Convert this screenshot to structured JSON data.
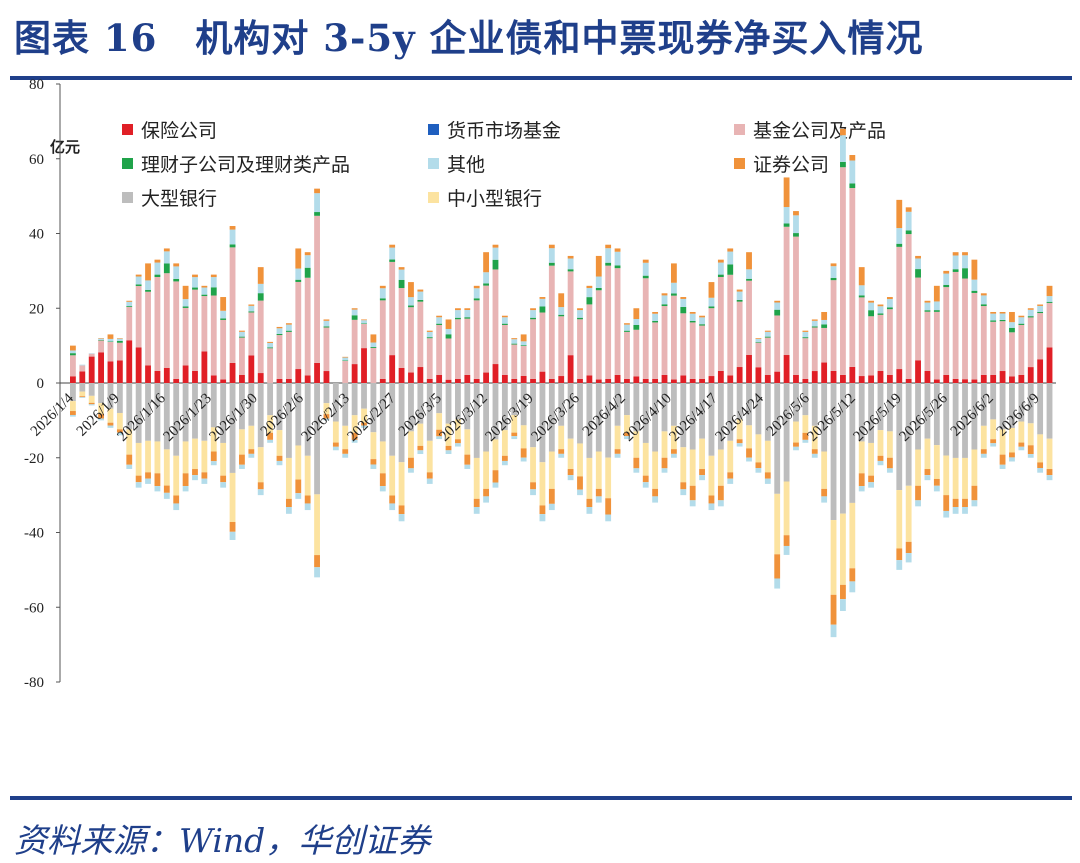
{
  "header": {
    "title": "图表 16　机构对 3-5y 企业债和中票现券净买入情况"
  },
  "footer": {
    "source": "资料来源：Wind，华创证券"
  },
  "chart_data": {
    "type": "bar",
    "stacked": true,
    "unit_label": "亿元",
    "ylim": [
      -80,
      80
    ],
    "yticks": [
      80,
      60,
      40,
      20,
      0,
      -20,
      -40,
      -60,
      -80
    ],
    "x_tick_labels": [
      "2026/1/4",
      "2026/1/9",
      "2026/1/16",
      "2026/1/23",
      "2026/1/30",
      "2026/2/6",
      "2026/2/13",
      "2026/2/27",
      "2026/3/5",
      "2026/3/12",
      "2026/3/19",
      "2026/3/26",
      "2026/4/2",
      "2026/4/10",
      "2026/4/17",
      "2026/4/24",
      "2026/5/6",
      "2026/5/12",
      "2026/5/19",
      "2026/5/26",
      "2026/6/2",
      "2026/6/9"
    ],
    "legend_placement": "top",
    "series": [
      {
        "name": "保险公司",
        "color": "#e01f26"
      },
      {
        "name": "货币市场基金",
        "color": "#1f5fbf"
      },
      {
        "name": "基金公司及产品",
        "color": "#e8b4b4"
      },
      {
        "name": "理财子公司及理财类产品",
        "color": "#1fa34a"
      },
      {
        "name": "其他",
        "color": "#b3dcea"
      },
      {
        "name": "证券公司",
        "color": "#f0923a"
      },
      {
        "name": "大型银行",
        "color": "#bdbdbd"
      },
      {
        "name": "中小型银行",
        "color": "#fce3a0"
      }
    ],
    "bar_totals": {
      "positive": [
        10,
        5,
        8,
        12,
        13,
        12,
        22,
        29,
        32,
        33,
        36,
        32,
        26,
        29,
        26,
        29,
        23,
        42,
        14,
        21,
        31,
        11,
        15,
        16,
        36,
        35,
        52,
        17,
        0,
        7,
        20,
        17,
        13,
        26,
        37,
        31,
        27,
        25,
        14,
        18,
        17,
        20,
        20,
        26,
        35,
        37,
        18,
        12,
        13,
        20,
        23,
        37,
        24,
        34,
        20,
        26,
        34,
        37,
        36,
        16,
        20,
        33,
        19,
        24,
        32,
        23,
        19,
        18,
        27,
        33,
        36,
        25,
        35,
        12,
        14,
        22,
        55,
        46,
        14,
        17,
        19,
        32,
        68,
        61,
        31,
        22,
        21,
        23,
        49,
        47,
        34,
        22,
        26,
        30,
        35,
        35,
        33,
        24,
        19,
        19,
        19,
        18,
        20,
        21,
        26
      ],
      "negative": [
        -9,
        -4,
        -6,
        -10,
        -12,
        -14,
        -23,
        -28,
        -27,
        -29,
        -31,
        -34,
        -29,
        -26,
        -27,
        -22,
        -28,
        -42,
        -23,
        -20,
        -30,
        -16,
        -22,
        -35,
        -31,
        -34,
        -52,
        -10,
        -18,
        -20,
        -16,
        -12,
        -23,
        -29,
        -34,
        -37,
        -24,
        -19,
        -27,
        -15,
        -19,
        -17,
        -23,
        -35,
        -32,
        -28,
        -22,
        -15,
        -21,
        -30,
        -37,
        -34,
        -20,
        -26,
        -30,
        -35,
        -32,
        -37,
        -20,
        -15,
        -24,
        -28,
        -32,
        -24,
        -20,
        -30,
        -33,
        -26,
        -34,
        -33,
        -27,
        -17,
        -21,
        -24,
        -27,
        -55,
        -46,
        -18,
        -16,
        -20,
        -32,
        -68,
        -61,
        -56,
        -29,
        -28,
        -22,
        -24,
        -50,
        -48,
        -33,
        -26,
        -29,
        -36,
        -35,
        -35,
        -33,
        -20,
        -17,
        -23,
        -21,
        -18,
        -20,
        -24,
        -26
      ],
      "insurance": [
        2,
        3,
        7,
        8,
        6,
        6,
        11,
        9,
        5,
        3,
        4,
        1,
        5,
        3,
        8,
        2,
        1,
        5,
        2,
        7,
        3,
        0,
        1,
        1,
        4,
        2,
        5,
        3,
        0,
        0,
        5,
        9,
        0,
        1,
        7,
        4,
        3,
        4,
        1,
        2,
        1,
        1,
        2,
        1,
        3,
        5,
        2,
        1,
        2,
        1,
        3,
        1,
        2,
        7,
        1,
        2,
        1,
        1,
        2,
        1,
        2,
        1,
        1,
        2,
        1,
        2,
        1,
        1,
        2,
        3,
        2,
        4,
        8,
        4,
        2,
        3,
        8,
        2,
        1,
        3,
        6,
        3,
        2,
        4,
        2,
        2,
        3,
        2,
        4,
        1,
        6,
        3,
        1,
        2,
        1,
        1,
        1,
        2,
        2,
        3,
        2,
        2,
        4,
        6,
        10
      ]
    }
  }
}
